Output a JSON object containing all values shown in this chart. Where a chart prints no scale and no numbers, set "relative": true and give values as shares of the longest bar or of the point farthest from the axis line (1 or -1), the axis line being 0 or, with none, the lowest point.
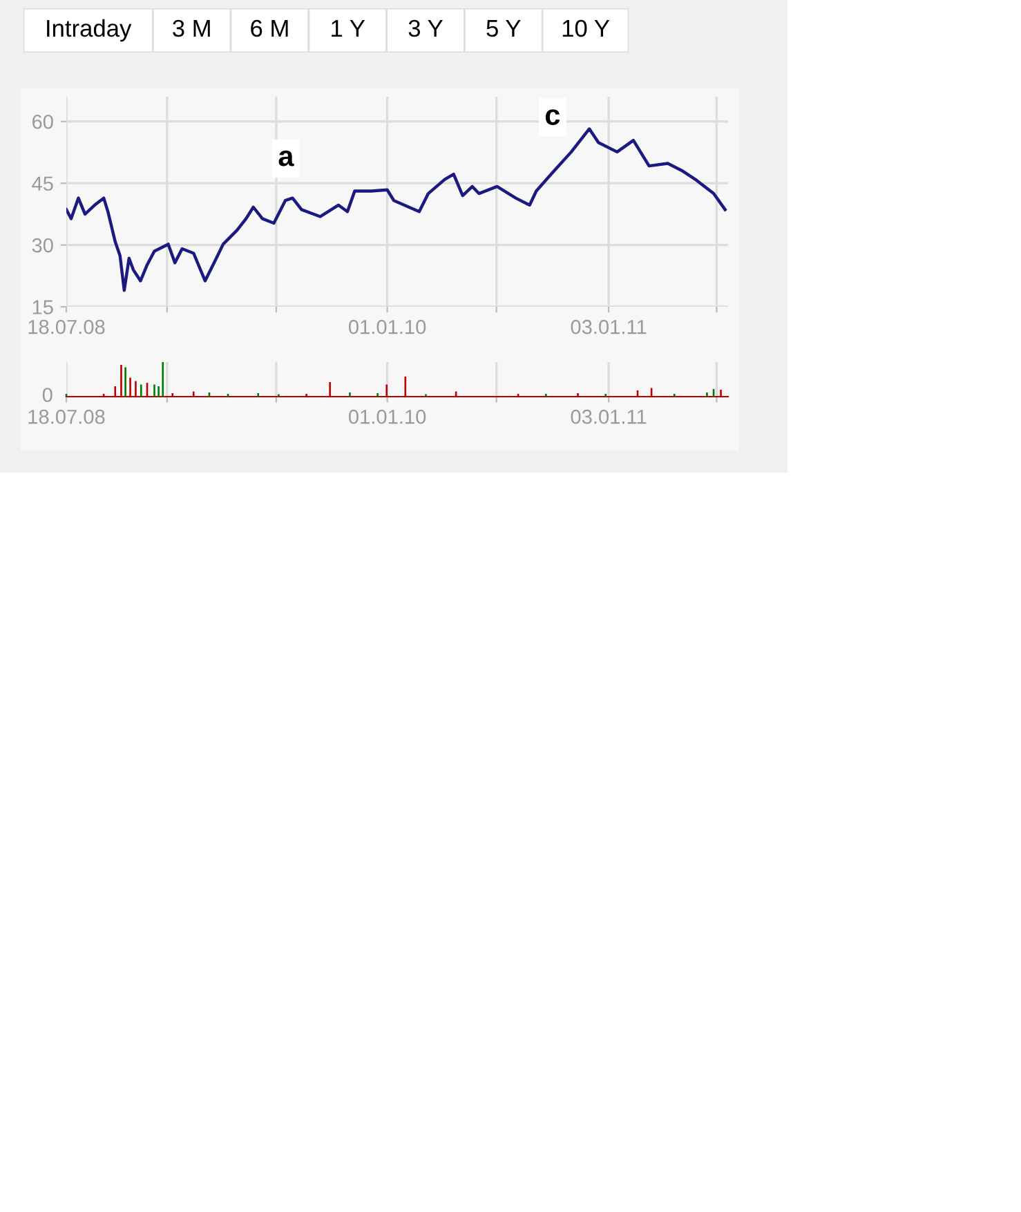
{
  "chart_data": [
    {
      "type": "other",
      "annotations": [
        "Intraday",
        "3 M",
        "6 M",
        "1 Y",
        "3 Y",
        "5 Y",
        "10 Y"
      ]
    },
    {
      "type": "line",
      "x": [
        "2008-07-18",
        "2008-07-26",
        "2008-08-07",
        "2008-08-18",
        "2008-09-03",
        "2008-09-18",
        "2008-09-25",
        "2008-10-07",
        "2008-10-15",
        "2008-10-22",
        "2008-10-30",
        "2008-11-06",
        "2008-11-18",
        "2008-11-29",
        "2008-12-11",
        "2009-01-03",
        "2009-01-14",
        "2009-01-26",
        "2009-02-14",
        "2009-03-05",
        "2009-03-20",
        "2009-04-04",
        "2009-04-27",
        "2009-05-12",
        "2009-05-24",
        "2009-06-08",
        "2009-06-27",
        "2009-07-16",
        "2009-07-28",
        "2009-08-12",
        "2009-09-12",
        "2009-10-12",
        "2009-10-27",
        "2009-11-08",
        "2009-12-05",
        "2010-01-01",
        "2010-01-12",
        "2010-02-23",
        "2010-03-10",
        "2010-04-06",
        "2010-04-21",
        "2010-05-06",
        "2010-05-22",
        "2010-06-02",
        "2010-07-02",
        "2010-08-02",
        "2010-08-25",
        "2010-09-05",
        "2010-10-02",
        "2010-11-02",
        "2010-11-17",
        "2010-12-02",
        "2010-12-17",
        "2011-01-17",
        "2011-02-13",
        "2011-03-11",
        "2011-04-11",
        "2011-05-04",
        "2011-05-27",
        "2011-06-26",
        "2011-07-15"
      ],
      "series": [
        {
          "color": "#1a1a80",
          "values": [
            38.6,
            36.4,
            41.4,
            37.5,
            39.7,
            41.4,
            38.1,
            30.8,
            27.4,
            19.0,
            26.8,
            24.0,
            21.3,
            25.2,
            28.5,
            30.2,
            25.7,
            29.1,
            28.0,
            21.3,
            25.7,
            30.2,
            33.6,
            36.4,
            39.2,
            36.4,
            35.3,
            40.8,
            41.4,
            38.6,
            36.9,
            39.7,
            38.1,
            43.1,
            43.1,
            43.4,
            40.8,
            38.1,
            42.5,
            45.9,
            47.2,
            42.0,
            44.2,
            42.5,
            44.2,
            41.4,
            39.7,
            43.1,
            47.6,
            52.6,
            55.4,
            58.2,
            54.9,
            52.6,
            55.4,
            49.2,
            49.8,
            48.1,
            45.9,
            42.5,
            38.6
          ]
        }
      ],
      "xlim": [
        "2008-07-18",
        "2011-07-20"
      ],
      "ylim": [
        15,
        66
      ],
      "xticks": [
        {
          "value": "2008-07-18",
          "label": "18.07.08"
        },
        {
          "value": "2009-01-01",
          "label": null
        },
        {
          "value": "2009-07-01",
          "label": null
        },
        {
          "value": "2010-01-01",
          "label": "01.01.10"
        },
        {
          "value": "2010-07-01",
          "label": null
        },
        {
          "value": "2011-01-03",
          "label": "03.01.11"
        },
        {
          "value": "2011-07-01",
          "label": null
        }
      ],
      "yticks": [
        15,
        30,
        45,
        60
      ],
      "grid": true,
      "marker": "none",
      "line_style": "solid",
      "annotations": [
        {
          "text": "a",
          "x": "2009-07-17",
          "y": 51
        },
        {
          "text": "c",
          "x": "2010-10-02",
          "y": 61
        }
      ]
    },
    {
      "type": "bar",
      "relative": true,
      "grid": "x",
      "x": [
        "2008-07-18",
        "2008-09-18",
        "2008-10-07",
        "2008-10-17",
        "2008-10-24",
        "2008-11-01",
        "2008-11-10",
        "2008-11-19",
        "2008-11-29",
        "2008-12-11",
        "2008-12-18",
        "2008-12-25",
        "2009-01-10",
        "2009-02-14",
        "2009-03-12",
        "2009-04-12",
        "2009-06-01",
        "2009-07-05",
        "2009-08-20",
        "2009-09-28",
        "2009-10-31",
        "2009-12-16",
        "2009-12-31",
        "2010-01-31",
        "2010-03-06",
        "2010-04-25",
        "2010-08-06",
        "2010-09-21",
        "2010-11-13",
        "2010-12-29",
        "2011-02-20",
        "2011-03-15",
        "2011-04-22",
        "2011-06-15",
        "2011-06-26",
        "2011-07-08"
      ],
      "values": [
        0.08,
        0.08,
        0.3,
        0.92,
        0.85,
        0.55,
        0.45,
        0.35,
        0.4,
        0.35,
        0.3,
        1.0,
        0.1,
        0.15,
        0.12,
        0.08,
        0.1,
        0.07,
        0.08,
        0.42,
        0.12,
        0.1,
        0.35,
        0.58,
        0.07,
        0.15,
        0.08,
        0.08,
        0.1,
        0.08,
        0.18,
        0.25,
        0.08,
        0.12,
        0.22,
        0.2
      ],
      "colors": [
        "#007a00",
        "#c00000",
        "#c00000",
        "#c00000",
        "#007a00",
        "#c00000",
        "#c00000",
        "#007a00",
        "#c00000",
        "#007a00",
        "#007a00",
        "#007a00",
        "#c00000",
        "#c00000",
        "#007a00",
        "#007a00",
        "#007a00",
        "#007a00",
        "#c00000",
        "#c00000",
        "#007a00",
        "#007a00",
        "#c00000",
        "#c00000",
        "#007a00",
        "#c00000",
        "#c00000",
        "#007a00",
        "#c00000",
        "#007a00",
        "#c00000",
        "#c00000",
        "#007a00",
        "#007a00",
        "#007a00",
        "#c00000"
      ],
      "xlim": [
        "2008-07-18",
        "2011-07-20"
      ],
      "xticks": [
        {
          "value": "2008-07-18",
          "label": "18.07.08"
        },
        {
          "value": "2009-01-01",
          "label": null
        },
        {
          "value": "2009-07-01",
          "label": null
        },
        {
          "value": "2010-01-01",
          "label": "01.01.10"
        },
        {
          "value": "2010-07-01",
          "label": null
        },
        {
          "value": "2011-01-03",
          "label": "03.01.11"
        },
        {
          "value": "2011-07-01",
          "label": null
        }
      ],
      "annotations": [
        "0"
      ]
    }
  ]
}
